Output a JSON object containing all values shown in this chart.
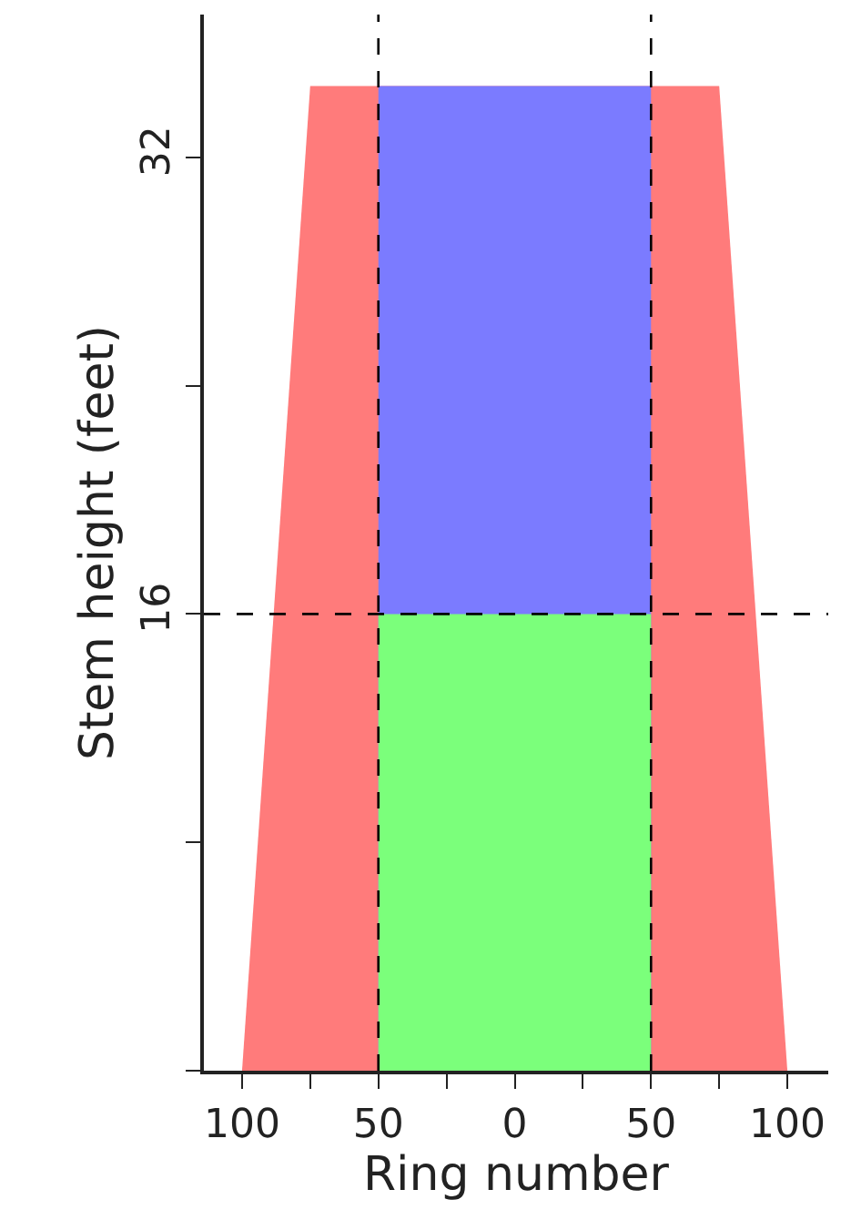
{
  "chart_data": {
    "type": "area",
    "xlabel": "Ring number",
    "ylabel": "Stem height (feet)",
    "series": [
      {
        "color": "#ff7b7b",
        "x": [
          -100,
          -75,
          75,
          100
        ],
        "values": [
          0,
          34.5,
          34.5,
          0
        ]
      },
      {
        "color": "#7b7bff",
        "x": [
          -50,
          50
        ],
        "values": [
          34.5,
          34.5
        ]
      },
      {
        "color": "#7bff7b",
        "x": [
          -50,
          50
        ],
        "values": [
          16,
          16
        ]
      }
    ],
    "ref_lines": [
      {
        "axis": "x",
        "value": -50,
        "color": "#000000",
        "line_style": "dashed"
      },
      {
        "axis": "x",
        "value": 50,
        "color": "#000000",
        "line_style": "dashed"
      },
      {
        "axis": "y",
        "value": 16,
        "color": "#000000",
        "line_style": "dashed"
      }
    ],
    "xlim": [
      -114,
      115
    ],
    "xticks": [
      {
        "value": -100,
        "label": "100"
      },
      {
        "value": -75,
        "label": null
      },
      {
        "value": -50,
        "label": "50"
      },
      {
        "value": -25,
        "label": null
      },
      0,
      {
        "value": 25,
        "label": null
      },
      {
        "value": 50,
        "label": "50"
      },
      {
        "value": 75,
        "label": null
      },
      {
        "value": 100,
        "label": "100"
      }
    ],
    "ylim": [
      0,
      37
    ],
    "yticks": [
      {
        "value": 0,
        "label": null
      },
      {
        "value": 8,
        "label": null
      },
      16,
      {
        "value": 24,
        "label": null
      },
      32
    ]
  }
}
